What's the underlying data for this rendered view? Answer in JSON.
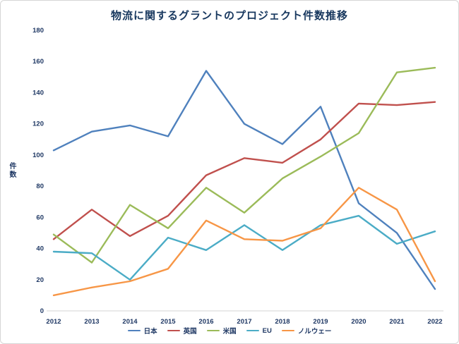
{
  "chart_data": {
    "type": "line",
    "title": "物流に関するグラントのプロジェクト件数推移",
    "xlabel": "",
    "ylabel": "件数",
    "categories": [
      "2012",
      "2013",
      "2014",
      "2015",
      "2016",
      "2017",
      "2018",
      "2019",
      "2020",
      "2021",
      "2022"
    ],
    "series": [
      {
        "name": "日本",
        "color": "#4F81BD",
        "values": [
          103,
          115,
          119,
          112,
          154,
          120,
          107,
          131,
          69,
          50,
          14
        ]
      },
      {
        "name": "英国",
        "color": "#C0504D",
        "values": [
          46,
          65,
          48,
          61,
          87,
          98,
          95,
          110,
          133,
          132,
          134
        ]
      },
      {
        "name": "米国",
        "color": "#9BBB59",
        "values": [
          49,
          31,
          68,
          53,
          79,
          63,
          85,
          99,
          114,
          153,
          156
        ]
      },
      {
        "name": "EU",
        "color": "#4BACC6",
        "values": [
          38,
          37,
          20,
          47,
          39,
          55,
          39,
          55,
          61,
          43,
          51
        ]
      },
      {
        "name": "ノルウェー",
        "color": "#F79646",
        "values": [
          10,
          15,
          19,
          27,
          58,
          46,
          45,
          53,
          79,
          65,
          19
        ]
      }
    ],
    "ylim": [
      0,
      180
    ],
    "ytick_step": 20,
    "grid": false,
    "legend_position": "bottom",
    "colors": {
      "title_text": "#17375E",
      "axis_text": "#1F3864",
      "axis_line": "#D6D6D6",
      "background": "#FFFFFF"
    }
  }
}
